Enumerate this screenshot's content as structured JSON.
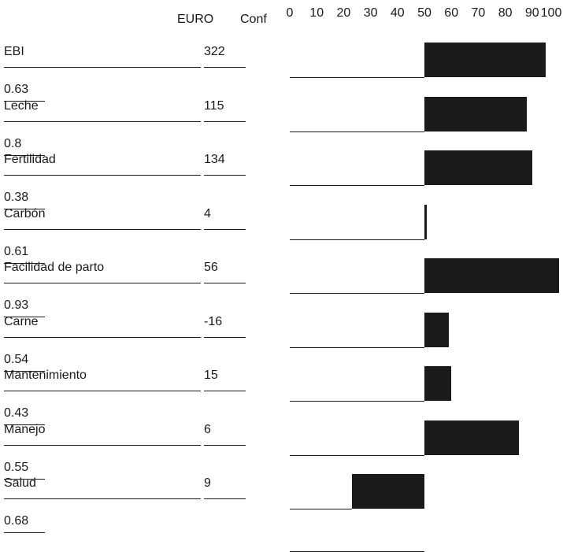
{
  "header": {
    "euro_label": "EURO",
    "conf_label": "Conf"
  },
  "chart_data": {
    "type": "bar",
    "orientation": "horizontal",
    "x_ticks": [
      "0",
      "10",
      "20",
      "30",
      "40",
      "50",
      "60",
      "70",
      "80",
      "90",
      "100"
    ],
    "xlim": [
      0,
      100
    ],
    "base": 50,
    "rows": [
      {
        "label": "EBI",
        "euro": "322",
        "conf": "0.63",
        "value": 95
      },
      {
        "label": "Leche",
        "euro": "115",
        "conf": "0.8",
        "value": 88
      },
      {
        "label": "Fertilidad",
        "euro": "134",
        "conf": "0.38",
        "value": 90
      },
      {
        "label": "Carbón",
        "euro": "4",
        "conf": "0.61",
        "value": 51
      },
      {
        "label": "Facilidad de parto",
        "euro": "56",
        "conf": "0.93",
        "value": 100
      },
      {
        "label": "Carne",
        "euro": "-16",
        "conf": "0.54",
        "value": 59
      },
      {
        "label": "Mantenimiento",
        "euro": "15",
        "conf": "0.43",
        "value": 60
      },
      {
        "label": "Manejo",
        "euro": "6",
        "conf": "0.55",
        "value": 85
      },
      {
        "label": "Salud",
        "euro": "9",
        "conf": "0.68",
        "value": 23
      }
    ]
  }
}
